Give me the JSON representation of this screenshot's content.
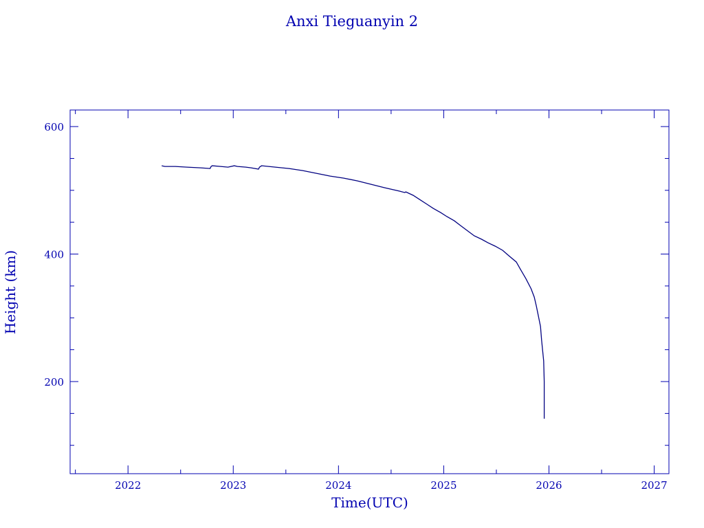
{
  "chart_data": {
    "type": "line",
    "title": "Anxi Tieguanyin 2",
    "xlabel": "Time(UTC)",
    "ylabel": "Height (km)",
    "xlim": [
      2021.45,
      2027.14
    ],
    "ylim": [
      55.5,
      626
    ],
    "xticks": [
      2022,
      2023,
      2024,
      2025,
      2026,
      2027
    ],
    "yticks": [
      200,
      400,
      600
    ],
    "grid": false,
    "color": "#000080",
    "axis_color": "#0000b0",
    "series": [
      {
        "name": "Height",
        "x": [
          2022.32,
          2022.35,
          2022.45,
          2022.56,
          2022.69,
          2022.78,
          2022.79,
          2022.8,
          2022.88,
          2022.95,
          2023.01,
          2023.04,
          2023.12,
          2023.17,
          2023.24,
          2023.25,
          2023.27,
          2023.4,
          2023.53,
          2023.66,
          2023.79,
          2023.92,
          2024.05,
          2024.18,
          2024.31,
          2024.44,
          2024.58,
          2024.63,
          2024.64,
          2024.71,
          2024.77,
          2024.84,
          2024.9,
          2024.97,
          2025.03,
          2025.1,
          2025.16,
          2025.23,
          2025.29,
          2025.36,
          2025.42,
          2025.49,
          2025.56,
          2025.62,
          2025.69,
          2025.73,
          2025.78,
          2025.83,
          2025.86,
          2025.88,
          2025.9,
          2025.92,
          2025.93,
          2025.95,
          2025.955,
          2025.955
        ],
        "y": [
          538.5,
          537.5,
          537.5,
          536.4,
          535.3,
          534.2,
          537.5,
          538.5,
          537.5,
          536.4,
          538.5,
          537.5,
          536.4,
          535.3,
          533.2,
          536.4,
          538.5,
          536.4,
          534.2,
          531.0,
          526.7,
          522.4,
          519.1,
          514.8,
          509.4,
          504.0,
          498.7,
          496.5,
          497.6,
          492.2,
          485.7,
          478.2,
          471.7,
          465.2,
          458.8,
          452.3,
          444.7,
          436.1,
          428.6,
          423.2,
          417.8,
          412.4,
          405.9,
          397.3,
          387.6,
          375.7,
          361.7,
          345.6,
          332.6,
          318.6,
          302.4,
          286.3,
          264.7,
          232.3,
          200.0,
          141.8
        ]
      }
    ]
  }
}
